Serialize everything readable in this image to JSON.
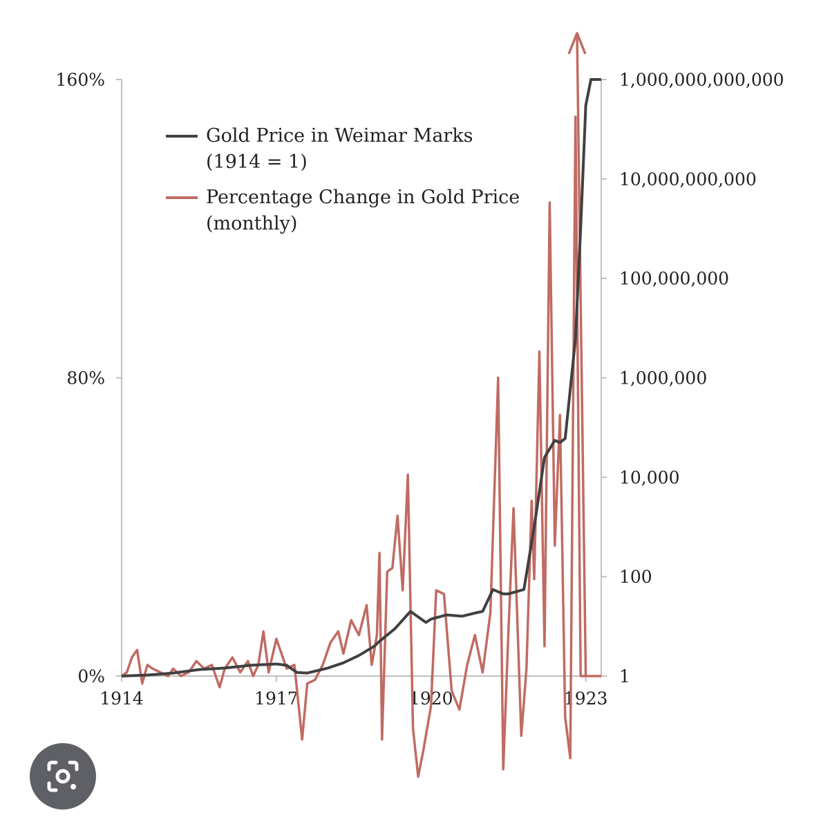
{
  "chart_data": {
    "type": "line",
    "left_axis": {
      "ticks": [
        0,
        80,
        160
      ],
      "tick_labels": [
        "0%",
        "80%",
        "160%"
      ],
      "ylim": [
        0,
        160
      ]
    },
    "right_axis": {
      "scale": "log",
      "ticks": [
        1,
        100,
        10000,
        1000000,
        100000000,
        10000000000,
        1000000000000
      ],
      "tick_labels": [
        "1",
        "100",
        "10,000",
        "1,000,000",
        "100,000,000",
        "10,000,000,000",
        "1,000,000,000,000"
      ],
      "ylim": [
        1,
        1000000000000
      ]
    },
    "x_axis": {
      "ticks": [
        1914,
        1917,
        1920,
        1923
      ],
      "tick_labels": [
        "1914",
        "1917",
        "1920",
        "1923"
      ],
      "xlim": [
        1914,
        1923.3
      ]
    },
    "grid": false,
    "legend_position": "top-left",
    "series": [
      {
        "name": "Gold Price in Weimar Marks",
        "name_line2": "(1914 = 1)",
        "axis": "right",
        "color": "#404040",
        "x": [
          1914.0,
          1914.5,
          1915.0,
          1915.5,
          1916.0,
          1916.5,
          1917.0,
          1917.2,
          1917.4,
          1917.6,
          1918.0,
          1918.3,
          1918.6,
          1918.9,
          1919.0,
          1919.3,
          1919.6,
          1919.9,
          1920.0,
          1920.3,
          1920.6,
          1920.9,
          1921.0,
          1921.2,
          1921.4,
          1921.5,
          1921.8,
          1922.0,
          1922.2,
          1922.4,
          1922.5,
          1922.6,
          1922.8,
          1922.9,
          1923.0,
          1923.1,
          1923.2,
          1923.3
        ],
        "values": [
          1,
          1.05,
          1.15,
          1.35,
          1.45,
          1.65,
          1.75,
          1.65,
          1.18,
          1.15,
          1.45,
          1.85,
          2.6,
          4,
          5,
          9,
          20,
          12,
          14,
          17,
          16,
          19,
          20,
          55,
          45,
          45,
          55,
          1000,
          25000,
          55000,
          50000,
          60000,
          6000000,
          1000000000,
          300000000000,
          1000000000000,
          1000000000000,
          1000000000000
        ]
      },
      {
        "name": "Percentage Change in Gold Price",
        "name_line2": "(monthly)",
        "axis": "left",
        "color": "#c06b63",
        "x": [
          1914.0,
          1914.1,
          1914.2,
          1914.3,
          1914.4,
          1914.5,
          1914.6,
          1914.75,
          1914.9,
          1915.0,
          1915.15,
          1915.3,
          1915.45,
          1915.6,
          1915.75,
          1915.9,
          1916.0,
          1916.15,
          1916.3,
          1916.45,
          1916.55,
          1916.65,
          1916.75,
          1916.85,
          1917.0,
          1917.2,
          1917.35,
          1917.5,
          1917.6,
          1917.75,
          1917.9,
          1918.05,
          1918.2,
          1918.3,
          1918.45,
          1918.6,
          1918.75,
          1918.85,
          1918.95,
          1919.0,
          1919.05,
          1919.15,
          1919.25,
          1919.35,
          1919.45,
          1919.55,
          1919.65,
          1919.75,
          1919.85,
          1920.0,
          1920.1,
          1920.25,
          1920.4,
          1920.55,
          1920.7,
          1920.85,
          1921.0,
          1921.15,
          1921.3,
          1921.4,
          1921.5,
          1921.6,
          1921.75,
          1921.85,
          1921.95,
          1922.0,
          1922.1,
          1922.2,
          1922.3,
          1922.4,
          1922.5,
          1922.6,
          1922.7,
          1922.8,
          1922.9,
          1923.0,
          1923.1,
          1923.2,
          1923.3
        ],
        "values": [
          0,
          1,
          5,
          7,
          -2,
          3,
          2,
          1,
          0,
          2,
          0,
          1,
          4,
          2,
          3,
          -3,
          2,
          5,
          1,
          4,
          0,
          3,
          12,
          1,
          10,
          2,
          3,
          -17,
          -2,
          -1,
          3,
          9,
          12,
          6,
          15,
          11,
          19,
          3,
          11,
          33,
          -17,
          28,
          29,
          43,
          23,
          54,
          -14,
          -27,
          -20,
          -8,
          23,
          22,
          -4,
          -9,
          3,
          11,
          1,
          17,
          80,
          -25,
          12,
          45,
          -16,
          2,
          47,
          26,
          87,
          8,
          127,
          35,
          70,
          -11,
          -22,
          150,
          0,
          0,
          0,
          0,
          0
        ]
      }
    ]
  },
  "lens_icon": "google-lens-camera-icon"
}
